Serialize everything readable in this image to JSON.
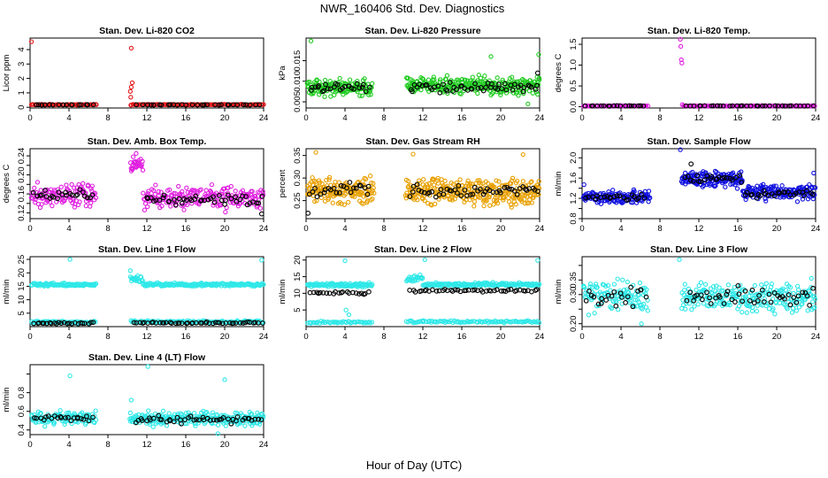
{
  "figure": {
    "title": "NWR_160406  Std. Dev. Diagnostics",
    "xlabel": "Hour of Day (UTC)"
  },
  "chart_data": [
    {
      "id": "co2",
      "type": "scatter",
      "title": "Stan. Dev. Li-820 CO2",
      "ylabel": "Licor ppm",
      "xlim": [
        0,
        24
      ],
      "xticks": [
        0,
        4,
        8,
        12,
        16,
        20,
        24
      ],
      "ylim": [
        -0.05,
        4.8
      ],
      "yticks": [
        0,
        1,
        2,
        3,
        4
      ],
      "ytick_labels": [
        "0",
        "1",
        "2",
        "3",
        "4"
      ],
      "color": "#e31a1c",
      "series": [
        {
          "role": "main",
          "segments": [
            {
              "x0": 0.1,
              "x1": 6.9,
              "base": 0.18,
              "spread": 0.04,
              "n": 60
            },
            {
              "x0": 10.3,
              "x1": 24,
              "base": 0.18,
              "spread": 0.04,
              "n": 130
            }
          ],
          "points": [
            {
              "x": 0.15,
              "y": 4.55
            },
            {
              "x": 10.4,
              "y": 4.1
            },
            {
              "x": 10.3,
              "y": 1.1
            },
            {
              "x": 10.4,
              "y": 1.4
            },
            {
              "x": 10.5,
              "y": 1.7
            },
            {
              "x": 10.35,
              "y": 0.7
            }
          ]
        },
        {
          "role": "mean",
          "segments": [
            {
              "x0": 0.3,
              "x1": 6.7,
              "base": 0.17,
              "spread": 0.02,
              "n": 16
            },
            {
              "x0": 10.8,
              "x1": 23.8,
              "base": 0.17,
              "spread": 0.02,
              "n": 30
            }
          ],
          "points": []
        }
      ]
    },
    {
      "id": "pressure",
      "type": "scatter",
      "title": "Stan. Dev. Li-820 Pressure",
      "ylabel": "kPa",
      "xlim": [
        0,
        24
      ],
      "xticks": [
        0,
        4,
        8,
        12,
        16,
        20,
        24
      ],
      "ylim": [
        0.0035,
        0.0205
      ],
      "yticks": [
        0.005,
        0.01,
        0.015
      ],
      "ytick_labels": [
        "0.005",
        "0.010",
        "0.015"
      ],
      "color": "#22cc22",
      "series": [
        {
          "role": "main",
          "segments": [
            {
              "x0": 0.1,
              "x1": 6.8,
              "base": 0.0085,
              "spread": 0.003,
              "n": 140
            },
            {
              "x0": 10.3,
              "x1": 24,
              "base": 0.009,
              "spread": 0.003,
              "n": 290
            }
          ],
          "points": [
            {
              "x": 0.5,
              "y": 0.0198
            },
            {
              "x": 23.9,
              "y": 0.0165
            },
            {
              "x": 19.0,
              "y": 0.016
            },
            {
              "x": 22.8,
              "y": 0.0045
            }
          ]
        },
        {
          "role": "mean",
          "segments": [
            {
              "x0": 0.3,
              "x1": 6.6,
              "base": 0.0085,
              "spread": 0.0015,
              "n": 26
            },
            {
              "x0": 10.6,
              "x1": 23.9,
              "base": 0.0085,
              "spread": 0.0017,
              "n": 52
            }
          ],
          "points": [
            {
              "x": 23.8,
              "y": 0.012
            }
          ]
        }
      ]
    },
    {
      "id": "temp",
      "type": "scatter",
      "title": "Stan. Dev. Li-820 Temp.",
      "ylabel": "degrees C",
      "xlim": [
        0,
        24
      ],
      "xticks": [
        0,
        4,
        8,
        12,
        16,
        20,
        24
      ],
      "ylim": [
        -0.03,
        1.65
      ],
      "yticks": [
        0,
        0.5,
        1,
        1.5
      ],
      "ytick_labels": [
        "0.0",
        "0.5",
        "1.0",
        "1.5"
      ],
      "color": "#e020e0",
      "series": [
        {
          "role": "main",
          "segments": [
            {
              "x0": 0.1,
              "x1": 6.8,
              "base": 0.02,
              "spread": 0.012,
              "n": 60
            },
            {
              "x0": 10.4,
              "x1": 24,
              "base": 0.02,
              "spread": 0.012,
              "n": 130
            }
          ],
          "points": [
            {
              "x": 10.1,
              "y": 1.62
            },
            {
              "x": 10.15,
              "y": 1.45
            },
            {
              "x": 10.2,
              "y": 1.13
            },
            {
              "x": 10.25,
              "y": 1.05
            },
            {
              "x": 10.3,
              "y": 0.05
            }
          ]
        },
        {
          "role": "mean",
          "segments": [
            {
              "x0": 0.3,
              "x1": 6.6,
              "base": 0.02,
              "spread": 0.006,
              "n": 18
            },
            {
              "x0": 10.6,
              "x1": 23.8,
              "base": 0.02,
              "spread": 0.006,
              "n": 34
            }
          ],
          "points": []
        }
      ]
    },
    {
      "id": "ambbox",
      "type": "scatter",
      "title": "Stan. Dev. Amb. Box Temp.",
      "ylabel": "degrees C",
      "xlim": [
        0,
        24
      ],
      "xticks": [
        0,
        4,
        8,
        12,
        16,
        20,
        24
      ],
      "ylim": [
        0.108,
        0.255
      ],
      "yticks": [
        0.12,
        0.14,
        0.16,
        0.18,
        0.2,
        0.22,
        0.24
      ],
      "ytick_labels": [
        "0.12",
        "",
        "0.16",
        "",
        "0.20",
        "",
        "0.24"
      ],
      "color": "#e020e0",
      "series": [
        {
          "role": "main",
          "segments": [
            {
              "x0": 0.1,
              "x1": 6.8,
              "base": 0.158,
              "spread": 0.035,
              "n": 110
            },
            {
              "x0": 10.3,
              "x1": 11.6,
              "base": 0.222,
              "spread": 0.018,
              "n": 28
            },
            {
              "x0": 11.6,
              "x1": 24,
              "base": 0.152,
              "spread": 0.032,
              "n": 200
            }
          ],
          "points": [
            {
              "x": 10.9,
              "y": 0.245
            },
            {
              "x": 10.6,
              "y": 0.238
            }
          ]
        },
        {
          "role": "mean",
          "segments": [
            {
              "x0": 0.3,
              "x1": 6.6,
              "base": 0.155,
              "spread": 0.02,
              "n": 24
            },
            {
              "x0": 11.8,
              "x1": 23.9,
              "base": 0.148,
              "spread": 0.018,
              "n": 44
            }
          ],
          "points": [
            {
              "x": 23.8,
              "y": 0.118
            }
          ]
        }
      ]
    },
    {
      "id": "rh",
      "type": "scatter",
      "title": "Stan. Dev. Gas Stream RH",
      "ylabel": "percent",
      "xlim": [
        0,
        24
      ],
      "xticks": [
        0,
        4,
        8,
        12,
        16,
        20,
        24
      ],
      "ylim": [
        0.21,
        0.365
      ],
      "yticks": [
        0.25,
        0.3,
        0.35
      ],
      "ytick_labels": [
        "0.25",
        "0.30",
        "0.35"
      ],
      "color": "#e8a000",
      "series": [
        {
          "role": "main",
          "segments": [
            {
              "x0": 0.1,
              "x1": 7.0,
              "base": 0.272,
              "spread": 0.04,
              "n": 150
            },
            {
              "x0": 10.2,
              "x1": 24,
              "base": 0.27,
              "spread": 0.04,
              "n": 290
            }
          ],
          "points": [
            {
              "x": 1.0,
              "y": 0.357
            },
            {
              "x": 11.0,
              "y": 0.353
            },
            {
              "x": 22.3,
              "y": 0.352
            }
          ]
        },
        {
          "role": "mean",
          "segments": [
            {
              "x0": 0.3,
              "x1": 6.6,
              "base": 0.275,
              "spread": 0.02,
              "n": 24
            },
            {
              "x0": 10.5,
              "x1": 23.9,
              "base": 0.272,
              "spread": 0.02,
              "n": 50
            }
          ],
          "points": [
            {
              "x": 0.2,
              "y": 0.222
            }
          ]
        }
      ]
    },
    {
      "id": "sampleflow",
      "type": "scatter",
      "title": "Stan. Dev. Sample Flow",
      "ylabel": "ml/min",
      "xlim": [
        0,
        24
      ],
      "xticks": [
        0,
        4,
        8,
        12,
        16,
        20,
        24
      ],
      "ylim": [
        0.8,
        2.18
      ],
      "yticks": [
        0.8,
        1.0,
        1.2,
        1.4,
        1.6,
        1.8,
        2.0
      ],
      "ytick_labels": [
        "0.8",
        "",
        "1.2",
        "",
        "1.6",
        "",
        "2.0"
      ],
      "color": "#1010e0",
      "series": [
        {
          "role": "main",
          "segments": [
            {
              "x0": 0.1,
              "x1": 7.0,
              "base": 1.22,
              "spread": 0.17,
              "n": 130
            },
            {
              "x0": 10.2,
              "x1": 16.5,
              "base": 1.58,
              "spread": 0.2,
              "n": 140
            },
            {
              "x0": 16.5,
              "x1": 24,
              "base": 1.32,
              "spread": 0.2,
              "n": 150
            }
          ],
          "points": [
            {
              "x": 10.1,
              "y": 2.16
            },
            {
              "x": 23.8,
              "y": 1.7
            },
            {
              "x": 0.2,
              "y": 1.47
            }
          ]
        },
        {
          "role": "mean",
          "segments": [
            {
              "x0": 0.3,
              "x1": 6.6,
              "base": 1.22,
              "spread": 0.08,
              "n": 22
            },
            {
              "x0": 10.5,
              "x1": 16.5,
              "base": 1.58,
              "spread": 0.1,
              "n": 22
            },
            {
              "x0": 16.6,
              "x1": 23.9,
              "base": 1.3,
              "spread": 0.1,
              "n": 26
            }
          ],
          "points": [
            {
              "x": 11.2,
              "y": 1.88
            }
          ]
        }
      ]
    },
    {
      "id": "line1",
      "type": "scatter",
      "title": "Stan. Dev. Line 1 Flow",
      "ylabel": "ml/min",
      "xlim": [
        0,
        24
      ],
      "xticks": [
        0,
        4,
        8,
        12,
        16,
        20,
        24
      ],
      "ylim": [
        0,
        26
      ],
      "yticks": [
        5,
        10,
        15,
        20,
        25
      ],
      "ytick_labels": [
        "5",
        "10",
        "15",
        "20",
        "25"
      ],
      "color": "#30e8e8",
      "series": [
        {
          "role": "main",
          "segments": [
            {
              "x0": 0.1,
              "x1": 6.8,
              "base": 15.6,
              "spread": 0.8,
              "n": 110
            },
            {
              "x0": 10.3,
              "x1": 11.6,
              "base": 17.8,
              "spread": 1.6,
              "n": 22
            },
            {
              "x0": 11.6,
              "x1": 24,
              "base": 15.6,
              "spread": 0.8,
              "n": 180
            },
            {
              "x0": 0.1,
              "x1": 6.8,
              "base": 1.6,
              "spread": 0.6,
              "n": 60
            },
            {
              "x0": 10.3,
              "x1": 24,
              "base": 1.8,
              "spread": 0.6,
              "n": 120
            }
          ],
          "points": [
            {
              "x": 4.1,
              "y": 25.0
            },
            {
              "x": 23.8,
              "y": 24.7
            },
            {
              "x": 10.3,
              "y": 20.8
            }
          ]
        },
        {
          "role": "mean",
          "segments": [
            {
              "x0": 0.3,
              "x1": 6.6,
              "base": 1.3,
              "spread": 0.4,
              "n": 24
            },
            {
              "x0": 10.6,
              "x1": 23.9,
              "base": 1.4,
              "spread": 0.4,
              "n": 48
            }
          ],
          "points": []
        }
      ]
    },
    {
      "id": "line2",
      "type": "scatter",
      "title": "Stan. Dev. Line 2 Flow",
      "ylabel": "ml/min",
      "xlim": [
        0,
        24
      ],
      "xticks": [
        0,
        4,
        8,
        12,
        16,
        20,
        24
      ],
      "ylim": [
        0,
        21
      ],
      "yticks": [
        5,
        10,
        15,
        20
      ],
      "ytick_labels": [
        "5",
        "10",
        "15",
        "20"
      ],
      "color": "#30e8e8",
      "series": [
        {
          "role": "main",
          "segments": [
            {
              "x0": 0.1,
              "x1": 6.8,
              "base": 12.5,
              "spread": 0.8,
              "n": 110
            },
            {
              "x0": 10.3,
              "x1": 12.0,
              "base": 14.3,
              "spread": 1.6,
              "n": 24
            },
            {
              "x0": 12.0,
              "x1": 24,
              "base": 12.6,
              "spread": 0.8,
              "n": 170
            },
            {
              "x0": 0.1,
              "x1": 6.8,
              "base": 1.3,
              "spread": 0.5,
              "n": 50
            },
            {
              "x0": 10.3,
              "x1": 24,
              "base": 1.5,
              "spread": 0.5,
              "n": 100
            }
          ],
          "points": [
            {
              "x": 4.0,
              "y": 19.8
            },
            {
              "x": 12.2,
              "y": 20.1
            },
            {
              "x": 23.8,
              "y": 19.9
            },
            {
              "x": 4.1,
              "y": 5.0
            },
            {
              "x": 4.4,
              "y": 3.6
            }
          ]
        },
        {
          "role": "mean",
          "segments": [
            {
              "x0": 0.3,
              "x1": 6.6,
              "base": 10.2,
              "spread": 0.6,
              "n": 22
            },
            {
              "x0": 10.6,
              "x1": 23.9,
              "base": 10.8,
              "spread": 0.6,
              "n": 46
            }
          ],
          "points": []
        }
      ]
    },
    {
      "id": "line3",
      "type": "scatter",
      "title": "Stan. Dev. Line 3 Flow",
      "ylabel": "ml/min",
      "xlim": [
        0,
        24
      ],
      "xticks": [
        0,
        4,
        8,
        12,
        16,
        20,
        24
      ],
      "ylim": [
        0.19,
        0.43
      ],
      "yticks": [
        0.2,
        0.25,
        0.3,
        0.35,
        0.4
      ],
      "ytick_labels": [
        "0.20",
        "",
        "0.30",
        "0.35",
        ""
      ],
      "color": "#30e8e8",
      "series": [
        {
          "role": "main",
          "segments": [
            {
              "x0": 0.1,
              "x1": 6.8,
              "base": 0.29,
              "spread": 0.07,
              "n": 110
            },
            {
              "x0": 10.2,
              "x1": 24,
              "base": 0.29,
              "spread": 0.07,
              "n": 240
            }
          ],
          "points": [
            {
              "x": 10.0,
              "y": 0.42
            },
            {
              "x": 6.1,
              "y": 0.2
            }
          ]
        },
        {
          "role": "mean",
          "segments": [
            {
              "x0": 0.3,
              "x1": 6.6,
              "base": 0.29,
              "spread": 0.05,
              "n": 22
            },
            {
              "x0": 10.6,
              "x1": 23.9,
              "base": 0.29,
              "spread": 0.05,
              "n": 46
            }
          ],
          "points": []
        }
      ]
    },
    {
      "id": "line4",
      "type": "scatter",
      "title": "Stan. Dev. Line 4 (LT) Flow",
      "ylabel": "ml/min",
      "xlim": [
        0,
        24
      ],
      "xticks": [
        0,
        4,
        8,
        12,
        16,
        20,
        24
      ],
      "ylim": [
        0.35,
        1.1
      ],
      "yticks": [
        0.4,
        0.6,
        0.8,
        1.0
      ],
      "ytick_labels": [
        "0.4",
        "0.6",
        "0.8",
        ""
      ],
      "color": "#30e8e8",
      "series": [
        {
          "role": "main",
          "segments": [
            {
              "x0": 0.1,
              "x1": 6.8,
              "base": 0.53,
              "spread": 0.1,
              "n": 110
            },
            {
              "x0": 10.2,
              "x1": 24,
              "base": 0.52,
              "spread": 0.1,
              "n": 250
            }
          ],
          "points": [
            {
              "x": 12.1,
              "y": 1.08
            },
            {
              "x": 4.1,
              "y": 0.98
            },
            {
              "x": 20.0,
              "y": 0.94
            },
            {
              "x": 10.4,
              "y": 0.72
            },
            {
              "x": 19.3,
              "y": 0.36
            }
          ]
        },
        {
          "role": "mean",
          "segments": [
            {
              "x0": 0.3,
              "x1": 6.6,
              "base": 0.52,
              "spread": 0.05,
              "n": 22
            },
            {
              "x0": 10.6,
              "x1": 23.9,
              "base": 0.51,
              "spread": 0.05,
              "n": 46
            }
          ],
          "points": []
        }
      ]
    }
  ]
}
